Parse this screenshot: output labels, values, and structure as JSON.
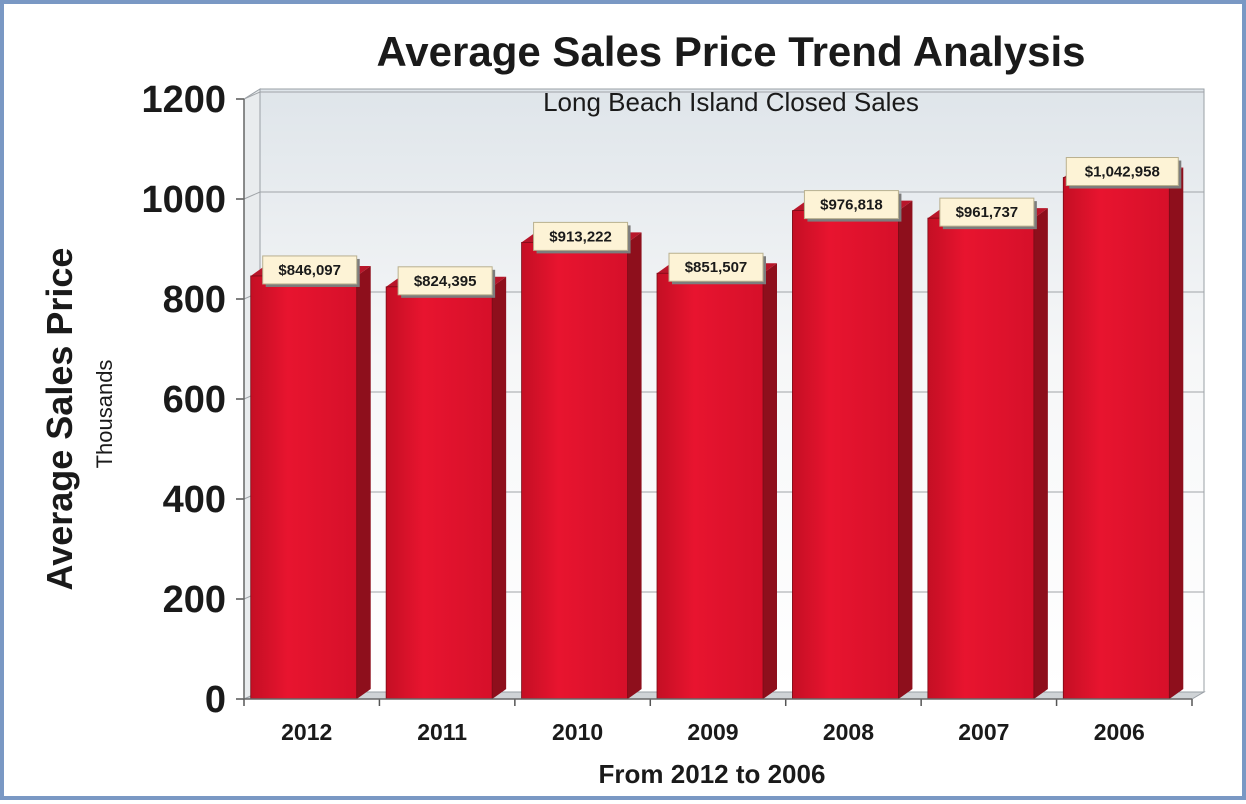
{
  "chart_data": {
    "type": "bar",
    "title": "Average Sales Price Trend Analysis",
    "subtitle": "Long Beach Island Closed Sales",
    "ylabel": "Average Sales Price",
    "ylabel_unit": "Thousands",
    "xlabel": "From 2012 to 2006",
    "categories": [
      "2012",
      "2011",
      "2010",
      "2009",
      "2008",
      "2007",
      "2006"
    ],
    "values": [
      846.097,
      824.395,
      913.222,
      851.507,
      976.818,
      961.737,
      1042.958
    ],
    "data_labels": [
      "$846,097",
      "$824,395",
      "$913,222",
      "$851,507",
      "$976,818",
      "$961,737",
      "$1,042,958"
    ],
    "yticks": [
      "0",
      "200",
      "400",
      "600",
      "800",
      "1000",
      "1200"
    ],
    "ylim": [
      0,
      1200
    ],
    "grid": true,
    "legend": "none",
    "colors": {
      "bar_front": "#e0102a",
      "bar_side": "#8e0f1c",
      "bar_top": "#b8162a",
      "label_bg": "#fdf3d6",
      "plot_bg_top": "#dfe5ea",
      "frame_border": "#7a98c4"
    }
  }
}
